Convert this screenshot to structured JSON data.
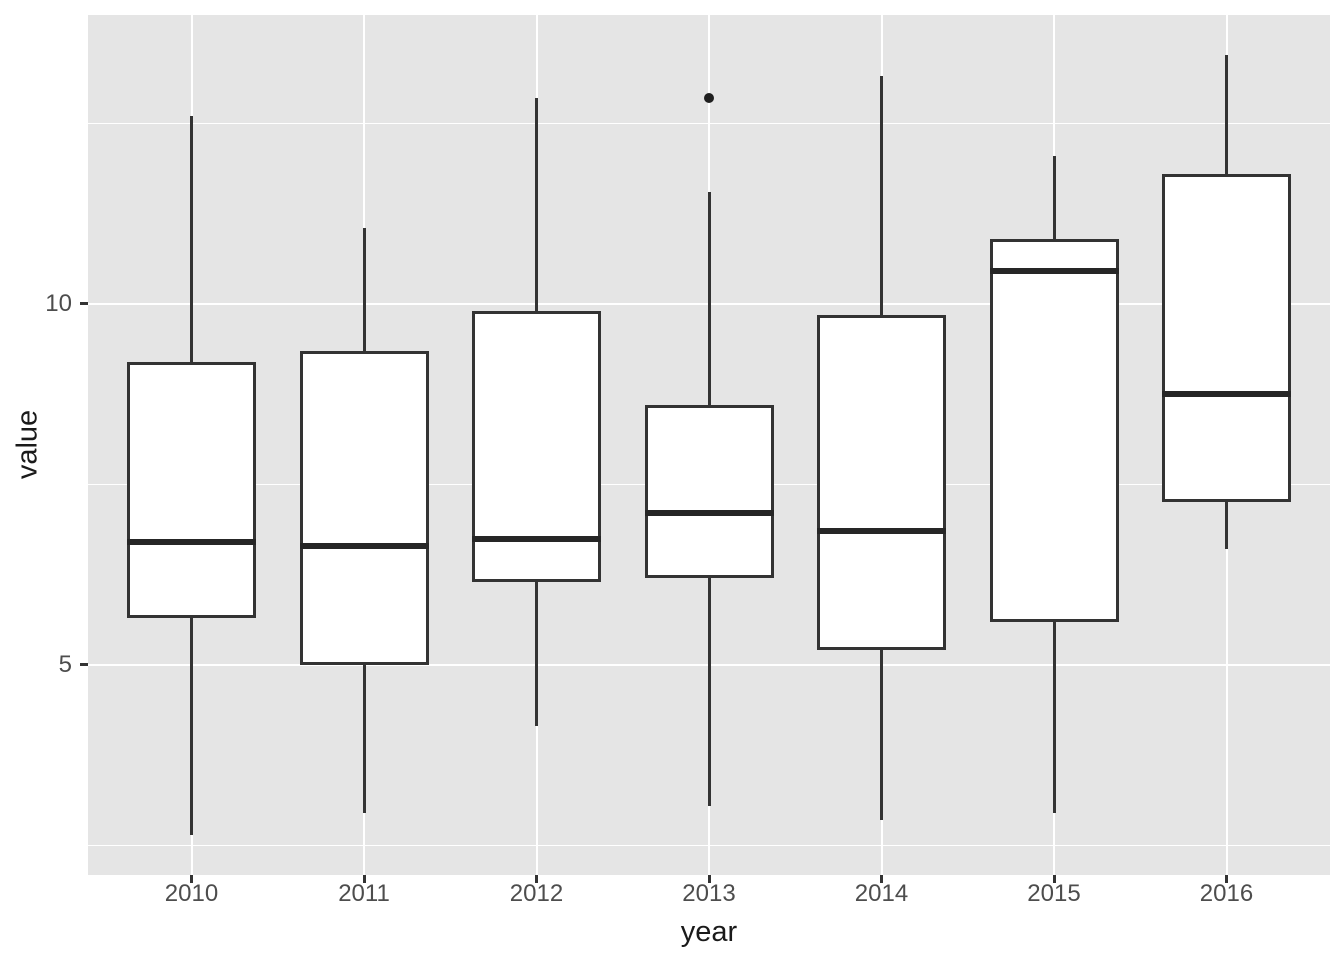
{
  "chart_data": {
    "type": "boxplot",
    "title": "",
    "xlabel": "year",
    "ylabel": "value",
    "categories": [
      "2010",
      "2011",
      "2012",
      "2013",
      "2014",
      "2015",
      "2016"
    ],
    "y_ticks": [
      5,
      10
    ],
    "y_minor_ticks": [
      2.5,
      7.5,
      12.5
    ],
    "ylim": [
      2.09,
      14.0
    ],
    "grid": "on",
    "legend": "none",
    "panel_background": "#E5E5E5",
    "gridline_color": "#FFFFFF",
    "box_fill": "#FFFFFF",
    "box_stroke": "#333333",
    "series": [
      {
        "category": "2010",
        "whisker_low": 2.65,
        "q1": 5.65,
        "median": 6.7,
        "q3": 9.2,
        "whisker_high": 12.6,
        "outliers": []
      },
      {
        "category": "2011",
        "whisker_low": 2.95,
        "q1": 5.0,
        "median": 6.65,
        "q3": 9.35,
        "whisker_high": 11.05,
        "outliers": []
      },
      {
        "category": "2012",
        "whisker_low": 4.15,
        "q1": 6.15,
        "median": 6.75,
        "q3": 9.9,
        "whisker_high": 12.85,
        "outliers": []
      },
      {
        "category": "2013",
        "whisker_low": 3.05,
        "q1": 6.2,
        "median": 7.1,
        "q3": 8.6,
        "whisker_high": 11.55,
        "outliers": [
          12.85
        ]
      },
      {
        "category": "2014",
        "whisker_low": 2.85,
        "q1": 5.2,
        "median": 6.85,
        "q3": 9.85,
        "whisker_high": 13.15,
        "outliers": []
      },
      {
        "category": "2015",
        "whisker_low": 2.95,
        "q1": 5.6,
        "median": 10.45,
        "q3": 10.9,
        "whisker_high": 12.05,
        "outliers": []
      },
      {
        "category": "2016",
        "whisker_low": 6.6,
        "q1": 7.25,
        "median": 8.75,
        "q3": 11.8,
        "whisker_high": 13.45,
        "outliers": []
      }
    ]
  }
}
